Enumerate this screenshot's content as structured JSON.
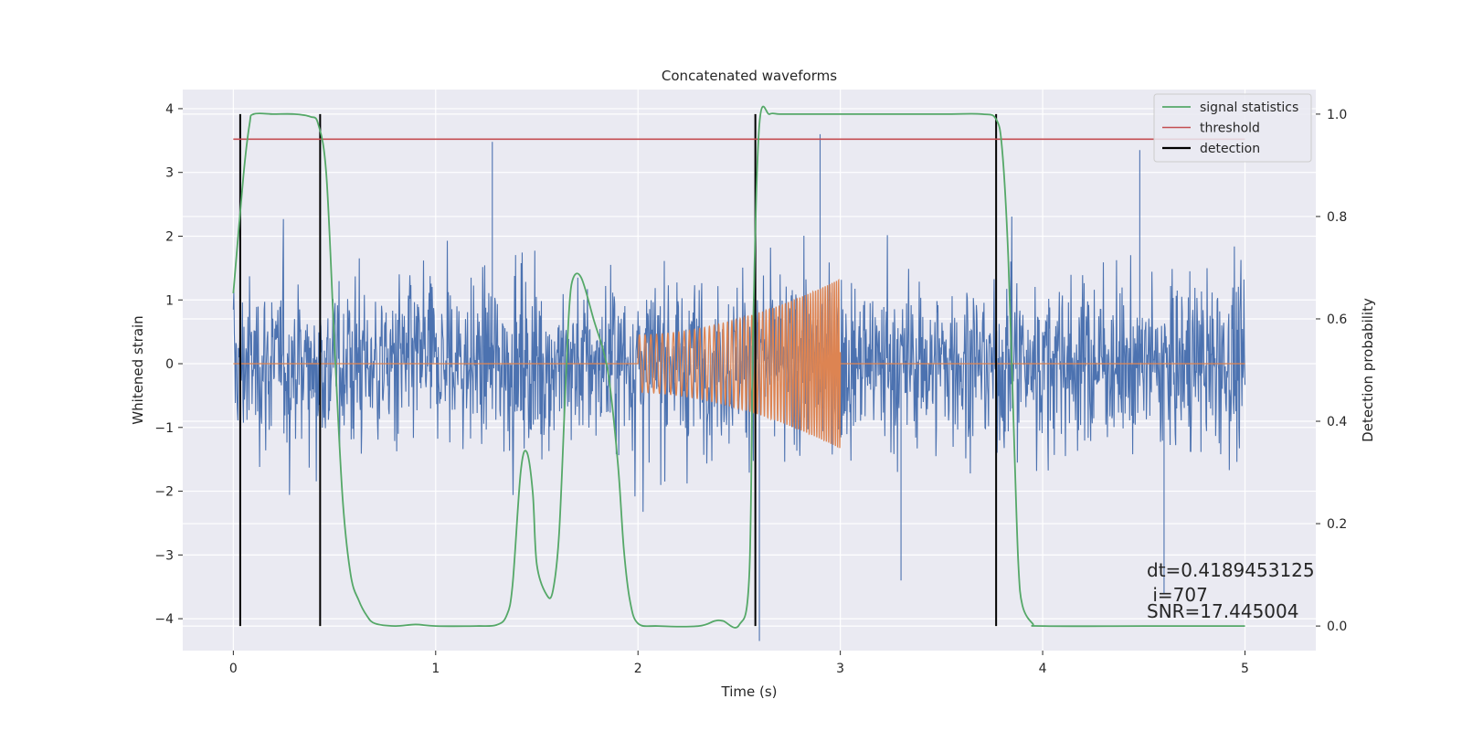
{
  "chart_data": {
    "type": "line",
    "title": "Concatenated waveforms",
    "xlabel": "Time (s)",
    "ylabel": "Whitened strain",
    "y2label": "Detection probability",
    "xlim": [
      -0.25,
      5.35
    ],
    "ylim": [
      -4.5,
      4.3
    ],
    "y2lim": [
      -0.048,
      1.048
    ],
    "xticks": [
      0,
      1,
      2,
      3,
      4,
      5
    ],
    "yticks": [
      -4,
      -3,
      -2,
      -1,
      0,
      1,
      2,
      3,
      4
    ],
    "y2ticks": [
      0.0,
      0.2,
      0.4,
      0.6,
      0.8,
      1.0
    ],
    "grid": true,
    "legend_position": "top-right",
    "colors": {
      "noise": "#4c72b0",
      "template": "#dd8452",
      "signal_statistics": "#55a868",
      "threshold": "#c44e52",
      "detection": "#000000",
      "background": "#eaeaf2",
      "grid": "#ffffff"
    },
    "series": [
      {
        "name": "signal statistics",
        "axis": "y2",
        "x": [
          0.0,
          0.05,
          0.08,
          0.1,
          0.2,
          0.3,
          0.38,
          0.42,
          0.46,
          0.5,
          0.54,
          0.58,
          0.62,
          0.66,
          0.7,
          0.8,
          0.9,
          1.0,
          1.2,
          1.3,
          1.35,
          1.38,
          1.42,
          1.45,
          1.48,
          1.5,
          1.55,
          1.58,
          1.61,
          1.64,
          1.66,
          1.68,
          1.72,
          1.78,
          1.85,
          1.9,
          1.93,
          1.96,
          2.0,
          2.1,
          2.3,
          2.38,
          2.42,
          2.5,
          2.55,
          2.57,
          2.6,
          2.65,
          2.7,
          2.8,
          3.0,
          3.5,
          3.7,
          3.77,
          3.8,
          3.83,
          3.86,
          3.88,
          3.9,
          3.95,
          4.0,
          4.5,
          5.0
        ],
        "y": [
          0.65,
          0.88,
          0.98,
          1.0,
          1.0,
          1.0,
          0.995,
          0.98,
          0.88,
          0.55,
          0.25,
          0.1,
          0.05,
          0.02,
          0.005,
          0.0,
          0.003,
          0.0,
          0.0,
          0.002,
          0.02,
          0.08,
          0.3,
          0.34,
          0.26,
          0.12,
          0.06,
          0.07,
          0.18,
          0.45,
          0.62,
          0.68,
          0.68,
          0.6,
          0.5,
          0.32,
          0.15,
          0.05,
          0.005,
          0.0,
          0.0,
          0.01,
          0.01,
          0.002,
          0.1,
          0.6,
          0.98,
          1.0,
          1.0,
          1.0,
          1.0,
          1.0,
          1.0,
          0.99,
          0.93,
          0.72,
          0.35,
          0.12,
          0.04,
          0.005,
          0.0,
          0.0,
          0.0
        ]
      },
      {
        "name": "threshold",
        "axis": "y2",
        "x": [
          0.0,
          5.0
        ],
        "y": [
          0.951,
          0.951
        ]
      },
      {
        "name": "detection",
        "axis": "y",
        "x_positions": [
          0.034,
          0.429,
          2.58,
          3.77
        ]
      }
    ],
    "noise_series": {
      "x_range": [
        0.0,
        5.0
      ],
      "typical_amplitude": 1.0,
      "extremes": [
        {
          "x": 1.28,
          "y": 3.48
        },
        {
          "x": 2.9,
          "y": 3.6
        },
        {
          "x": 3.3,
          "y": -3.4
        },
        {
          "x": 4.48,
          "y": 3.35
        },
        {
          "x": 4.6,
          "y": -3.6
        },
        {
          "x": 2.6,
          "y": -4.35
        },
        {
          "x": 0.43,
          "y": 3.75
        }
      ]
    },
    "template_series": {
      "x_range": [
        2.0,
        3.0
      ],
      "amplitude_start": 0.45,
      "amplitude_end": 1.33,
      "freq_start_hz": 35,
      "freq_end_hz": 95,
      "flat_value": 0.0
    },
    "annotations": [
      "dt=0.4189453125",
      " i=707",
      "SNR=17.445004"
    ]
  }
}
